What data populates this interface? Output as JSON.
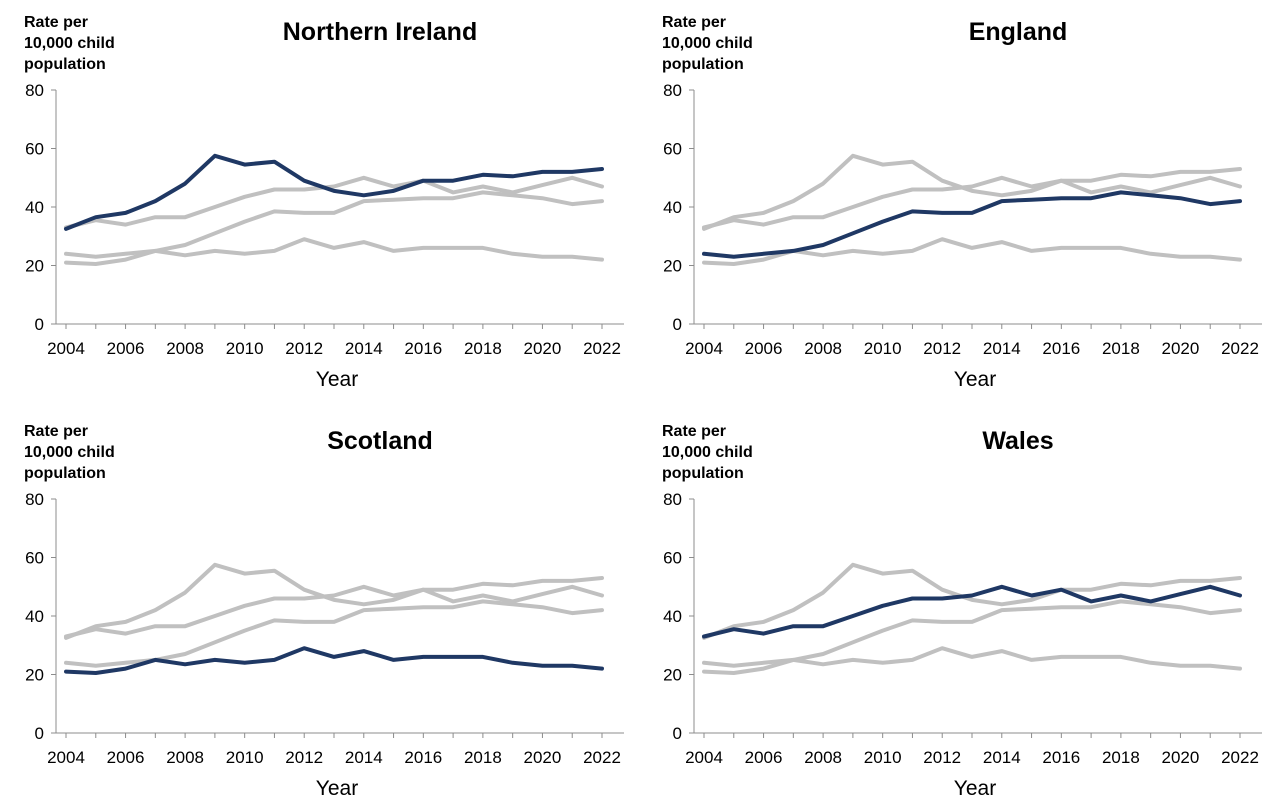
{
  "chart_data": [
    {
      "type": "line",
      "title": "Northern Ireland",
      "ylabel": "Rate per 10,000 child population",
      "ylabel_lines": [
        "Rate per",
        "10,000 child",
        "population"
      ],
      "xlabel": "Year",
      "ylim": [
        0,
        80
      ],
      "yticks": [
        0,
        20,
        40,
        60,
        80
      ],
      "xticks": [
        2004,
        2006,
        2008,
        2010,
        2012,
        2014,
        2016,
        2018,
        2020,
        2022
      ],
      "highlight": "Northern Ireland",
      "highlight_color": "#1f3864",
      "other_color": "#c0c0c0"
    },
    {
      "type": "line",
      "title": "England",
      "ylabel": "Rate per 10,000 child population",
      "ylabel_lines": [
        "Rate per",
        "10,000 child",
        "population"
      ],
      "xlabel": "Year",
      "ylim": [
        0,
        80
      ],
      "yticks": [
        0,
        20,
        40,
        60,
        80
      ],
      "xticks": [
        2004,
        2006,
        2008,
        2010,
        2012,
        2014,
        2016,
        2018,
        2020,
        2022
      ],
      "highlight": "England",
      "highlight_color": "#1f3864",
      "other_color": "#c0c0c0"
    },
    {
      "type": "line",
      "title": "Scotland",
      "ylabel": "Rate per 10,000 child population",
      "ylabel_lines": [
        "Rate per",
        "10,000 child",
        "population"
      ],
      "xlabel": "Year",
      "ylim": [
        0,
        80
      ],
      "yticks": [
        0,
        20,
        40,
        60,
        80
      ],
      "xticks": [
        2004,
        2006,
        2008,
        2010,
        2012,
        2014,
        2016,
        2018,
        2020,
        2022
      ],
      "highlight": "Scotland",
      "highlight_color": "#1f3864",
      "other_color": "#c0c0c0"
    },
    {
      "type": "line",
      "title": "Wales",
      "ylabel": "Rate per 10,000 child population",
      "ylabel_lines": [
        "Rate per",
        "10,000 child",
        "population"
      ],
      "xlabel": "Year",
      "ylim": [
        0,
        80
      ],
      "yticks": [
        0,
        20,
        40,
        60,
        80
      ],
      "xticks": [
        2004,
        2006,
        2008,
        2010,
        2012,
        2014,
        2016,
        2018,
        2020,
        2022
      ],
      "highlight": "Wales",
      "highlight_color": "#1f3864",
      "other_color": "#c0c0c0"
    }
  ],
  "series_data": {
    "x": [
      2004,
      2005,
      2006,
      2007,
      2008,
      2009,
      2010,
      2011,
      2012,
      2013,
      2014,
      2015,
      2016,
      2017,
      2018,
      2019,
      2020,
      2021,
      2022
    ],
    "series": [
      {
        "name": "Northern Ireland",
        "values": [
          32.5,
          36.5,
          38,
          42,
          48,
          57.5,
          54.5,
          55.5,
          49,
          45.5,
          44,
          45.5,
          49,
          49,
          51,
          50.5,
          52,
          52,
          53
        ]
      },
      {
        "name": "England",
        "values": [
          24,
          23,
          24,
          25,
          27,
          31,
          35,
          38.5,
          38,
          38,
          42,
          42.5,
          43,
          43,
          45,
          44,
          43,
          41,
          42
        ]
      },
      {
        "name": "Scotland",
        "values": [
          21,
          20.5,
          22,
          25,
          23.5,
          25,
          24,
          25,
          29,
          26,
          28,
          25,
          26,
          26,
          26,
          24,
          23,
          23,
          22
        ]
      },
      {
        "name": "Wales",
        "values": [
          33,
          35.5,
          34,
          36.5,
          36.5,
          40,
          43.5,
          46,
          46,
          47,
          50,
          47,
          49,
          45,
          47,
          45,
          47.5,
          50,
          47
        ]
      }
    ]
  }
}
